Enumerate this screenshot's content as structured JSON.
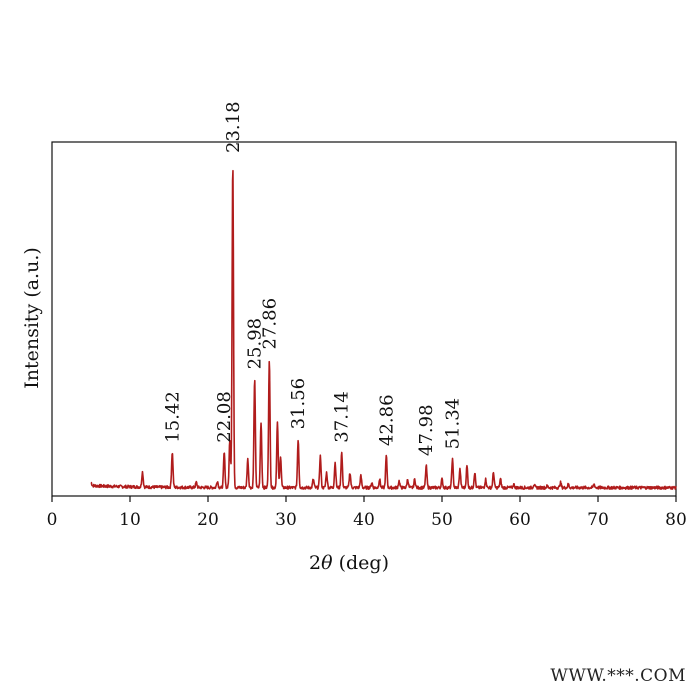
{
  "watermark": "WWW.***.COM",
  "chart_data": {
    "type": "line",
    "title": "",
    "xlabel": "2θ (deg)",
    "ylabel": "Intensity (a.u.)",
    "xlim": [
      0,
      80
    ],
    "ylim": [
      0,
      100
    ],
    "xticks": [
      0,
      10,
      20,
      30,
      40,
      50,
      60,
      70,
      80
    ],
    "grid": false,
    "line_color": "#b01c1c",
    "x_start": 5,
    "x_end": 80,
    "baseline": 2.5,
    "peaks": [
      {
        "x": 5.0,
        "y": 3.5
      },
      {
        "x": 11.6,
        "y": 7
      },
      {
        "x": 15.42,
        "y": 13,
        "label": "15.42"
      },
      {
        "x": 18.5,
        "y": 4
      },
      {
        "x": 21.2,
        "y": 4.5
      },
      {
        "x": 22.08,
        "y": 13,
        "label": "22.08"
      },
      {
        "x": 22.8,
        "y": 17
      },
      {
        "x": 23.18,
        "y": 100,
        "label": "23.18"
      },
      {
        "x": 25.1,
        "y": 11
      },
      {
        "x": 25.98,
        "y": 35,
        "label": "25.98"
      },
      {
        "x": 26.8,
        "y": 22
      },
      {
        "x": 27.86,
        "y": 41,
        "label": "27.86"
      },
      {
        "x": 28.9,
        "y": 22
      },
      {
        "x": 29.3,
        "y": 12
      },
      {
        "x": 31.56,
        "y": 17,
        "label": "31.56"
      },
      {
        "x": 33.5,
        "y": 5
      },
      {
        "x": 34.4,
        "y": 12
      },
      {
        "x": 35.2,
        "y": 7
      },
      {
        "x": 36.3,
        "y": 10
      },
      {
        "x": 37.14,
        "y": 13,
        "label": "37.14"
      },
      {
        "x": 38.2,
        "y": 7
      },
      {
        "x": 39.6,
        "y": 6
      },
      {
        "x": 41.0,
        "y": 4
      },
      {
        "x": 42.0,
        "y": 5
      },
      {
        "x": 42.86,
        "y": 12,
        "label": "42.86"
      },
      {
        "x": 44.5,
        "y": 4.5
      },
      {
        "x": 45.6,
        "y": 5
      },
      {
        "x": 46.5,
        "y": 5
      },
      {
        "x": 47.98,
        "y": 9,
        "label": "47.98"
      },
      {
        "x": 50.0,
        "y": 5
      },
      {
        "x": 51.34,
        "y": 11,
        "label": "51.34"
      },
      {
        "x": 52.3,
        "y": 8
      },
      {
        "x": 53.2,
        "y": 9
      },
      {
        "x": 54.2,
        "y": 7
      },
      {
        "x": 55.6,
        "y": 5
      },
      {
        "x": 56.6,
        "y": 7
      },
      {
        "x": 57.5,
        "y": 5
      },
      {
        "x": 59.2,
        "y": 3.5
      },
      {
        "x": 61.8,
        "y": 3.5
      },
      {
        "x": 63.5,
        "y": 3
      },
      {
        "x": 65.2,
        "y": 4
      },
      {
        "x": 66.2,
        "y": 3.5
      },
      {
        "x": 69.5,
        "y": 3.5
      },
      {
        "x": 72.5,
        "y": 2.5
      }
    ]
  }
}
